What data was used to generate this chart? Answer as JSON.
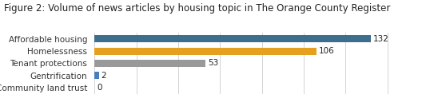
{
  "title": "Figure 2: Volume of news articles by housing topic in The Orange County Register",
  "categories": [
    "Community land trust",
    "Gentrification",
    "Tenant protections",
    "Homelessness",
    "Affordable housing"
  ],
  "values": [
    0,
    2,
    53,
    106,
    132
  ],
  "bar_colors": [
    "#999999",
    "#4a7fba",
    "#999999",
    "#e5a020",
    "#3d6e8e"
  ],
  "value_labels": [
    "0",
    "2",
    "53",
    "106",
    "132"
  ],
  "xlim": [
    0,
    148
  ],
  "title_fontsize": 8.5,
  "label_fontsize": 7.5,
  "value_fontsize": 7.5,
  "bar_height": 0.58,
  "background_color": "#ffffff",
  "grid_color": "#cccccc"
}
